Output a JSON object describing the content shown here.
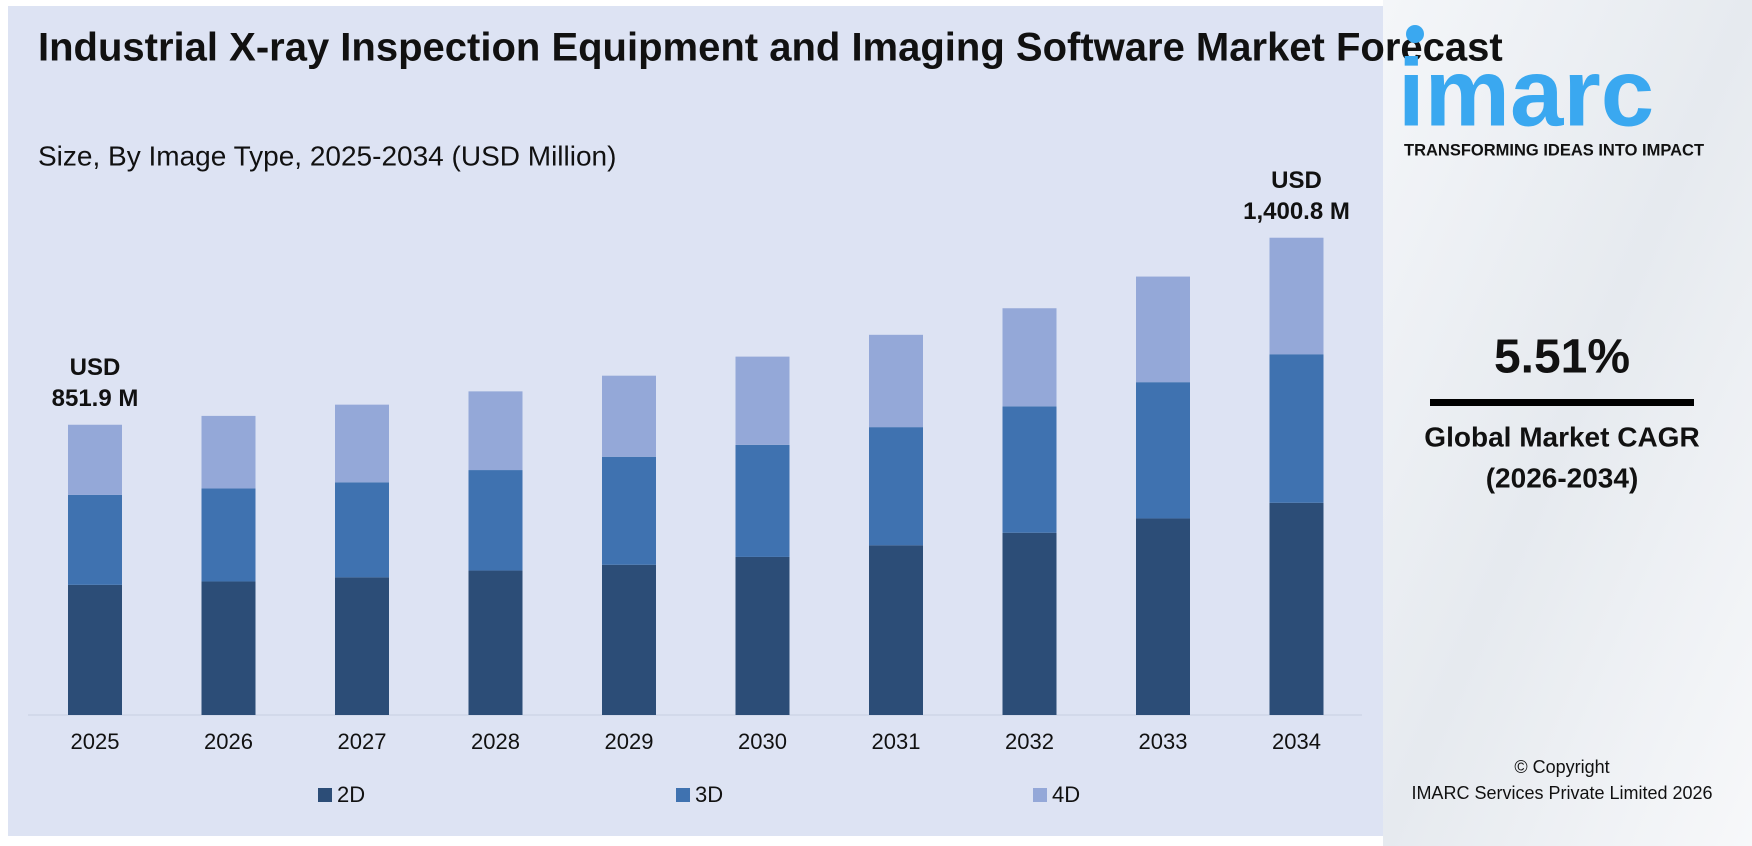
{
  "chart_data": {
    "type": "bar",
    "stacked": true,
    "title": "Industrial X-ray Inspection Equipment and Imaging Software Market Forecast",
    "subtitle": "Size, By Image Type, 2025-2034 (USD Million)",
    "categories": [
      "2025",
      "2026",
      "2027",
      "2028",
      "2029",
      "2030",
      "2031",
      "2032",
      "2033",
      "2034"
    ],
    "series": [
      {
        "name": "2D",
        "color": "#2c4d77",
        "values": [
          382,
          392,
          404,
          424,
          441,
          464,
          498,
          535,
          577,
          623
        ]
      },
      {
        "name": "3D",
        "color": "#3f72b0",
        "values": [
          264,
          273,
          279,
          295,
          317,
          329,
          347,
          371,
          400,
          436
        ]
      },
      {
        "name": "4D",
        "color": "#94a8d8",
        "values": [
          206,
          213,
          228,
          231,
          238,
          259,
          271,
          288,
          310,
          342
        ]
      }
    ],
    "annotations": [
      [
        "USD",
        "851.9 M"
      ],
      [
        "USD",
        "1,400.8 M"
      ]
    ],
    "ylim": [
      0,
      1500
    ],
    "grid": false
  },
  "panel": {
    "logo": "imarc",
    "tagline": "TRANSFORMING IDEAS INTO IMPACT",
    "cagr": "5.51%",
    "cagr_label": [
      "Global Market CAGR",
      "(2026-2034)"
    ],
    "copyright": [
      "© Copyright",
      "IMARC Services Private Limited 2026"
    ]
  }
}
